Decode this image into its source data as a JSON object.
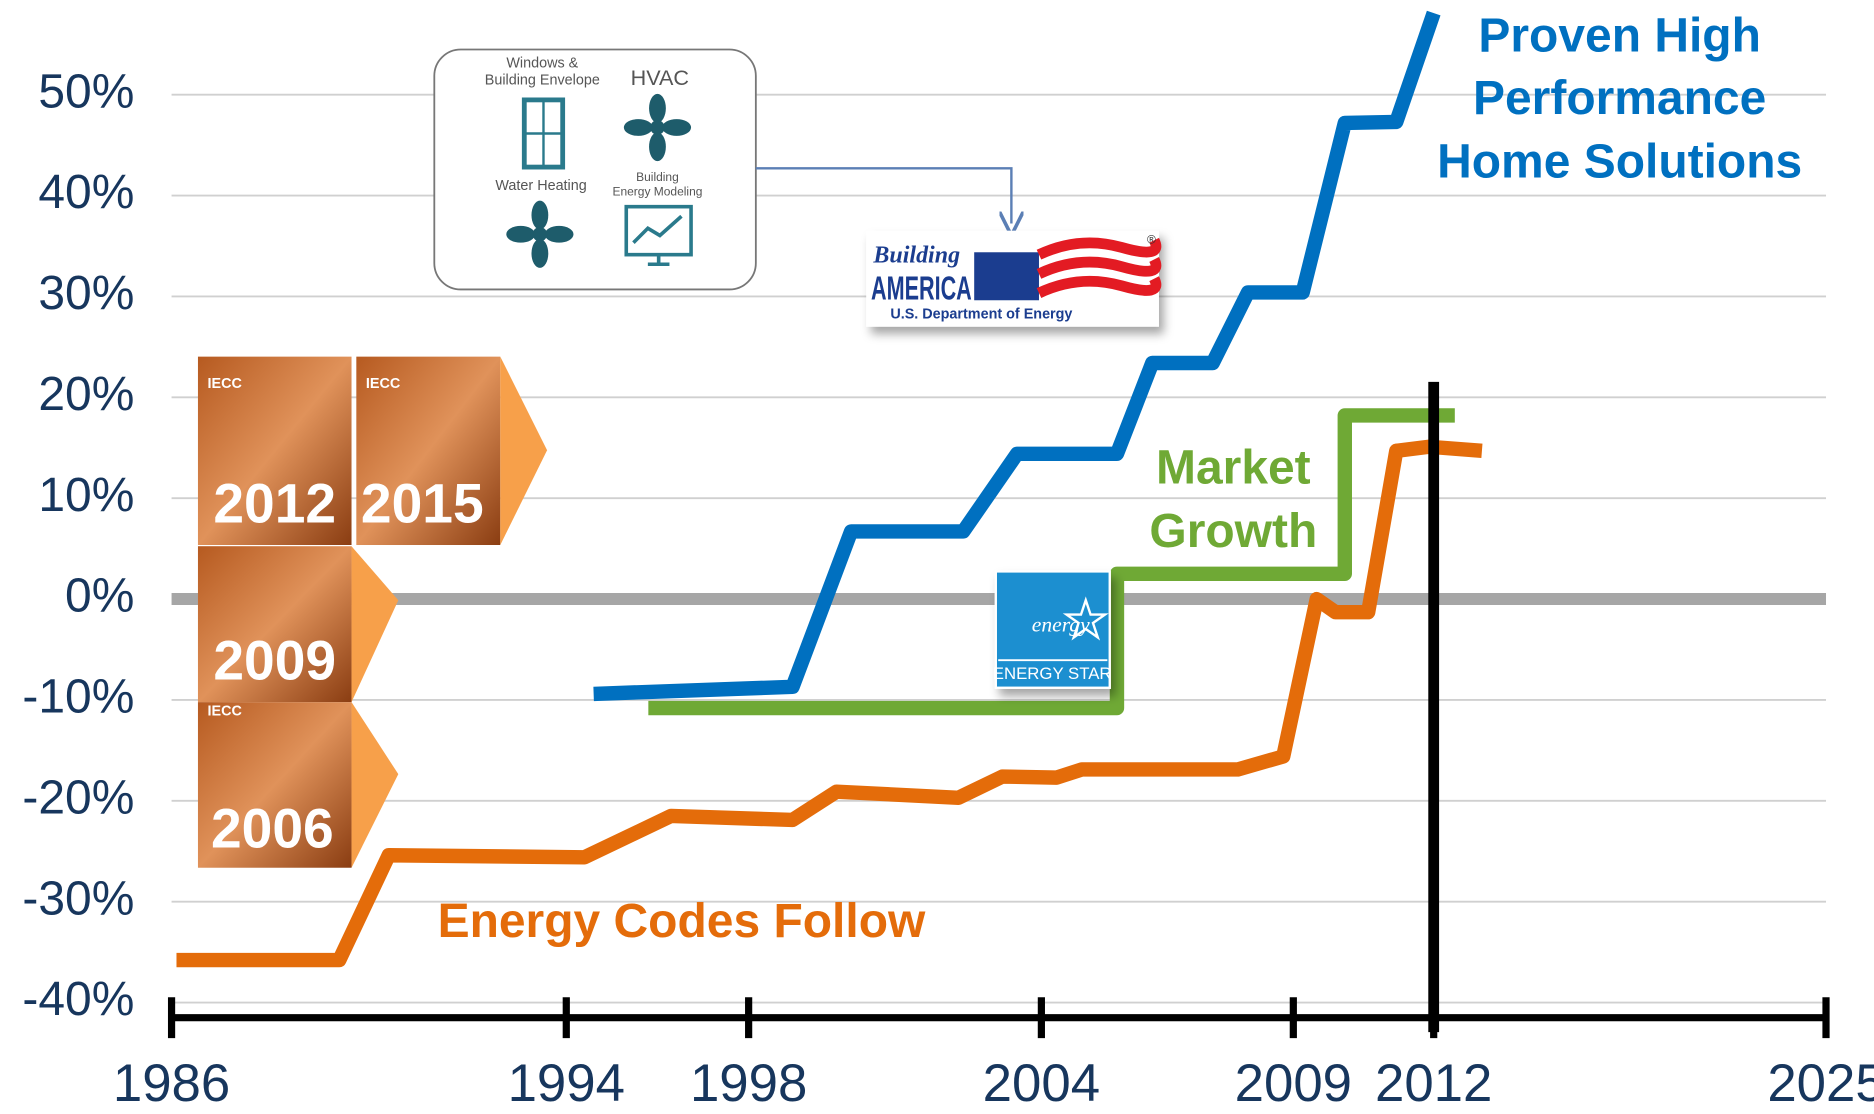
{
  "chart_data": {
    "type": "line",
    "xlim": [
      1986,
      2025
    ],
    "xticks": [
      1986,
      1994,
      1998,
      2004,
      2009,
      2012,
      2025
    ],
    "ylim": [
      -45,
      59
    ],
    "yticks": [
      {
        "value": -40,
        "label": "-40%"
      },
      {
        "value": -30,
        "label": "-30%"
      },
      {
        "value": -20,
        "label": "-20%"
      },
      {
        "value": -10,
        "label": "-10%"
      },
      {
        "value": 0,
        "label": "0%"
      },
      {
        "value": 10,
        "label": "10%"
      },
      {
        "value": 20,
        "label": "20%"
      },
      {
        "value": 30,
        "label": "30%"
      },
      {
        "value": 40,
        "label": "40%"
      },
      {
        "value": 50,
        "label": "50%"
      }
    ],
    "grid": true,
    "zero_line": true,
    "vline": 2012,
    "series": [
      {
        "color": "#e46c0a",
        "x": [
          1986.1,
          1989.4,
          1990.4,
          1994.4,
          1996.3,
          1998.9,
          1999.8,
          2002.3,
          2003.2,
          2004.3,
          2004.8,
          2007.9,
          2008.8,
          2009.5,
          2009.9,
          2010.6,
          2011.2,
          2011.9,
          2013.6
        ],
        "values": [
          -35.8,
          -35.8,
          -25.4,
          -25.6,
          -21.5,
          -21.9,
          -19.1,
          -19.7,
          -17.6,
          -17.7,
          -16.9,
          -16.9,
          -15.6,
          0,
          -1.3,
          -1.3,
          14.7,
          15.1,
          14.7
        ]
      },
      {
        "color": "#0070c0",
        "x": [
          1994.6,
          1998.9,
          2000.1,
          2002.4,
          2003.5,
          2005.5,
          2006.2,
          2007.4,
          2008.1,
          2009.2,
          2010.1,
          2011.2,
          2012.0
        ],
        "values": [
          -9.4,
          -8.7,
          6.7,
          6.7,
          14.4,
          14.4,
          23.4,
          23.4,
          30.4,
          30.4,
          47.2,
          47.3,
          58.1
        ]
      },
      {
        "color": "#6fa935",
        "x": [
          1995.8,
          2005.5,
          2005.5,
          2010.1,
          2010.1,
          2012.7
        ],
        "values": [
          -10.8,
          -10.8,
          2.5,
          2.5,
          18.2,
          18.2
        ]
      }
    ],
    "annotations": {
      "proven": [
        "Proven High",
        "Performance",
        "Home Solutions"
      ],
      "market": [
        "Market",
        "Growth"
      ],
      "codes": "Energy Codes Follow"
    }
  },
  "images": {
    "icon_box": {
      "windows": [
        "Windows &",
        "Building Envelope"
      ],
      "hvac": "HVAC",
      "water": "Water Heating",
      "modeling": [
        "Building",
        "Energy Modeling"
      ]
    },
    "building_america": {
      "script": "Building",
      "name": "AMERICA",
      "dept": "U.S. Department of Energy",
      "mark": "®"
    },
    "energy_star": {
      "script": "energy",
      "name": "ENERGY STAR"
    },
    "iecc_books": [
      {
        "label": "IECC",
        "year": "2012"
      },
      {
        "label": "IECC",
        "year": "2015"
      },
      {
        "year": "2009"
      },
      {
        "label": "IECC",
        "year": "2006"
      }
    ]
  }
}
